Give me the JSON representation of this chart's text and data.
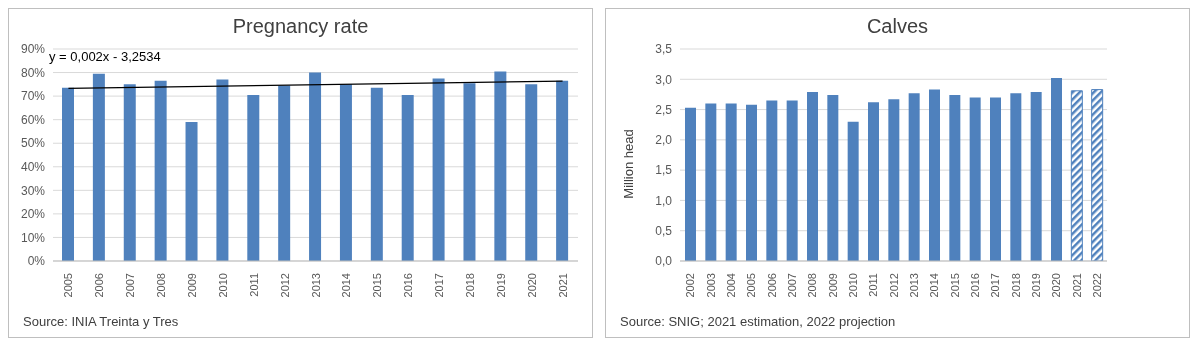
{
  "chart_data": [
    {
      "type": "bar",
      "title": "Pregnancy rate",
      "x": [
        2005,
        2006,
        2007,
        2008,
        2009,
        2010,
        2011,
        2012,
        2013,
        2014,
        2015,
        2016,
        2017,
        2018,
        2019,
        2020,
        2021
      ],
      "xlim": [
        2004.5,
        2021.5
      ],
      "xticks": [
        2005,
        2006,
        2007,
        2008,
        2009,
        2010,
        2011,
        2012,
        2013,
        2014,
        2015,
        2016,
        2017,
        2018,
        2019,
        2020,
        2021
      ],
      "series": [
        {
          "color": "#4f81bd",
          "values": [
            73.5,
            79.5,
            75,
            76.5,
            59,
            77,
            70.5,
            74.5,
            80,
            75,
            73.5,
            70.5,
            77.5,
            75.5,
            80.5,
            75,
            76.5
          ]
        },
        {
          "type": "line",
          "color": "#000000",
          "x": [
            2005,
            2021
          ],
          "values": [
            73.3,
            76.4
          ]
        }
      ],
      "ylim": [
        0,
        90
      ],
      "yticks": [
        {
          "value": 0,
          "label": "0%"
        },
        {
          "value": 10,
          "label": "10%"
        },
        {
          "value": 20,
          "label": "20%"
        },
        {
          "value": 30,
          "label": "30%"
        },
        {
          "value": 40,
          "label": "40%"
        },
        {
          "value": 50,
          "label": "50%"
        },
        {
          "value": 60,
          "label": "60%"
        },
        {
          "value": 70,
          "label": "70%"
        },
        {
          "value": 80,
          "label": "80%"
        },
        {
          "value": 90,
          "label": "90%"
        }
      ],
      "grid": "y",
      "annotations": [
        "y = 0,002x - 3,2534",
        "Source:  INIA Treinta y Tres"
      ]
    },
    {
      "type": "bar",
      "title": "Calves",
      "ylabel": "Million head",
      "categories": [
        "2002",
        "2003",
        "2004",
        "2005",
        "2006",
        "2007",
        "2008",
        "2009",
        "2010",
        "2011",
        "2012",
        "2013",
        "2014",
        "2015",
        "2016",
        "2017",
        "2018",
        "2019",
        "2020",
        "2021",
        "2022"
      ],
      "stacked": true,
      "series": [
        {
          "color": "#4f81bd",
          "values": [
            2.53,
            2.6,
            2.6,
            2.58,
            2.65,
            2.65,
            2.79,
            2.74,
            2.3,
            2.62,
            2.67,
            2.77,
            2.83,
            2.74,
            2.7,
            2.7,
            2.77,
            2.79,
            3.02,
            null,
            null
          ]
        },
        {
          "color": "#4f81bd",
          "values": [
            null,
            null,
            null,
            null,
            null,
            null,
            null,
            null,
            null,
            null,
            null,
            null,
            null,
            null,
            null,
            null,
            null,
            null,
            null,
            2.81,
            2.83
          ]
        }
      ],
      "ylim": [
        0,
        3.5
      ],
      "yticks": [
        {
          "value": 0,
          "label": "0,0"
        },
        {
          "value": 0.5,
          "label": "0,5"
        },
        {
          "value": 1,
          "label": "1,0"
        },
        {
          "value": 1.5,
          "label": "1,5"
        },
        {
          "value": 2,
          "label": "2,0"
        },
        {
          "value": 2.5,
          "label": "2,5"
        },
        {
          "value": 3,
          "label": "3,0"
        },
        {
          "value": 3.5,
          "label": "3,5"
        }
      ],
      "grid": "y",
      "annotations": [
        "Source: SNIG; 2021 estimation, 2022 projection"
      ]
    }
  ]
}
